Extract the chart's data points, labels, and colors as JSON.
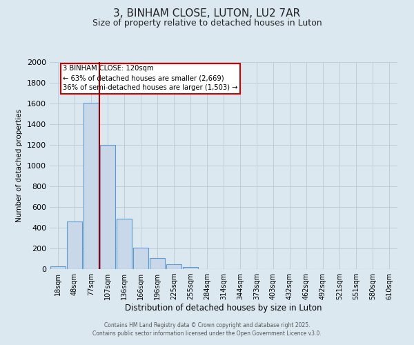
{
  "title": "3, BINHAM CLOSE, LUTON, LU2 7AR",
  "subtitle": "Size of property relative to detached houses in Luton",
  "xlabel": "Distribution of detached houses by size in Luton",
  "ylabel": "Number of detached properties",
  "categories": [
    "18sqm",
    "48sqm",
    "77sqm",
    "107sqm",
    "136sqm",
    "166sqm",
    "196sqm",
    "225sqm",
    "255sqm",
    "284sqm",
    "314sqm",
    "344sqm",
    "373sqm",
    "403sqm",
    "432sqm",
    "462sqm",
    "492sqm",
    "521sqm",
    "551sqm",
    "580sqm",
    "610sqm"
  ],
  "values": [
    30,
    460,
    1610,
    1200,
    490,
    210,
    110,
    50,
    20,
    0,
    0,
    0,
    0,
    0,
    0,
    0,
    0,
    0,
    0,
    0,
    0
  ],
  "bar_color": "#c8d8e8",
  "bar_edge_color": "#5b9bd5",
  "red_line_index": 3,
  "annotation_title": "3 BINHAM CLOSE: 120sqm",
  "annotation_line1": "← 63% of detached houses are smaller (2,669)",
  "annotation_line2": "36% of semi-detached houses are larger (1,503) →",
  "annotation_box_color": "white",
  "annotation_box_edge": "#cc0000",
  "red_line_color": "#990000",
  "ylim": [
    0,
    2000
  ],
  "yticks": [
    0,
    200,
    400,
    600,
    800,
    1000,
    1200,
    1400,
    1600,
    1800,
    2000
  ],
  "background_color": "#dce8f0",
  "grid_color": "#c0cdd8",
  "footer1": "Contains HM Land Registry data © Crown copyright and database right 2025.",
  "footer2": "Contains public sector information licensed under the Open Government Licence v3.0.",
  "title_fontsize": 11,
  "subtitle_fontsize": 9
}
